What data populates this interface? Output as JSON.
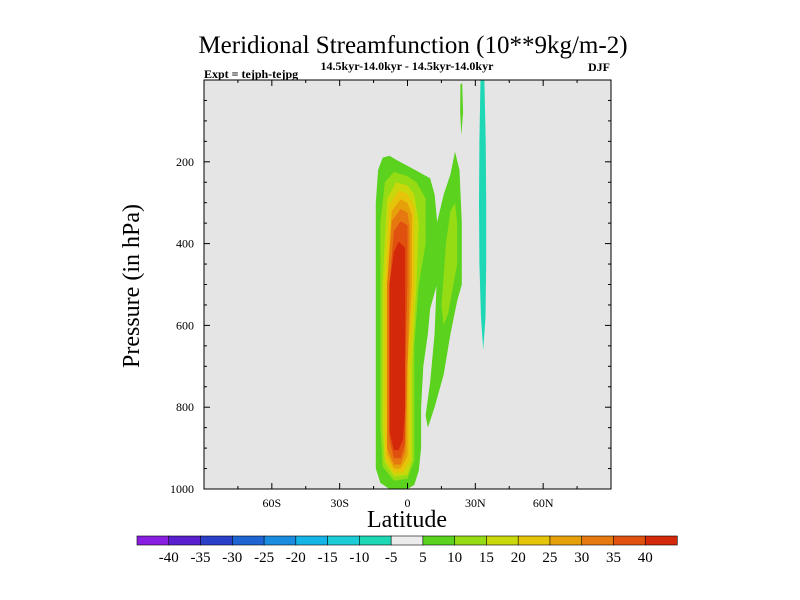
{
  "chart_data": {
    "type": "contour",
    "title": "Meridional Streamfunction (10**9kg/m-2)",
    "subtitle_left": "Expt = tejph-tejpg",
    "subtitle_center": "14.5kyr-14.0kyr - 14.5kyr-14.0kyr",
    "subtitle_right": "DJF",
    "xlabel": "Latitude",
    "ylabel": "Pressure (in hPa)",
    "xlim": [
      -90,
      90
    ],
    "ylim": [
      0,
      1000
    ],
    "x_ticks": [
      {
        "value": -60,
        "label": "60S"
      },
      {
        "value": -30,
        "label": "30S"
      },
      {
        "value": 0,
        "label": "0"
      },
      {
        "value": 30,
        "label": "30N"
      },
      {
        "value": 60,
        "label": "60N"
      }
    ],
    "y_ticks": [
      {
        "value": 200,
        "label": "200"
      },
      {
        "value": 400,
        "label": "400"
      },
      {
        "value": 600,
        "label": "600"
      },
      {
        "value": 800,
        "label": "800"
      },
      {
        "value": 1000,
        "label": "1000"
      }
    ],
    "background_color": "#e5e5e5",
    "colorbar": {
      "colors": [
        "#8a1ee0",
        "#5a20d0",
        "#2a40c8",
        "#1e64d2",
        "#1a8ce0",
        "#14b4e6",
        "#1ccdd8",
        "#1ed7b4",
        "#ececec",
        "#5ad21e",
        "#96dc14",
        "#c8d80a",
        "#e6c40a",
        "#e6a00a",
        "#e67810",
        "#e0500e",
        "#d4280a"
      ],
      "labels": [
        "-40",
        "-35",
        "-30",
        "-25",
        "-20",
        "-15",
        "-10",
        "-5",
        "5",
        "10",
        "15",
        "20",
        "25",
        "30",
        "35",
        "40"
      ]
    },
    "features": [
      {
        "name": "main-cell-green",
        "level": "5 to 10",
        "color": "#5ad21e",
        "outline": [
          [
            -8,
            1000
          ],
          [
            -12,
            985
          ],
          [
            -14,
            950
          ],
          [
            -14,
            800
          ],
          [
            -14,
            500
          ],
          [
            -14,
            300
          ],
          [
            -13,
            220
          ],
          [
            -11,
            190
          ],
          [
            -8,
            185
          ],
          [
            -5,
            195
          ],
          [
            0,
            210
          ],
          [
            5,
            225
          ],
          [
            10,
            240
          ],
          [
            12,
            280
          ],
          [
            13,
            340
          ],
          [
            14,
            400
          ],
          [
            14,
            480
          ],
          [
            10,
            560
          ],
          [
            9,
            620
          ],
          [
            7,
            700
          ],
          [
            6,
            800
          ],
          [
            6,
            900
          ],
          [
            5,
            955
          ],
          [
            3,
            990
          ],
          [
            0,
            1000
          ]
        ]
      },
      {
        "name": "main-cell-light-green",
        "level": "10 to 15",
        "color": "#96dc14",
        "outline": [
          [
            -6,
            980
          ],
          [
            -11,
            945
          ],
          [
            -12,
            850
          ],
          [
            -12,
            600
          ],
          [
            -12,
            350
          ],
          [
            -10,
            250
          ],
          [
            -6,
            225
          ],
          [
            0,
            235
          ],
          [
            4,
            250
          ],
          [
            8,
            290
          ],
          [
            8,
            400
          ],
          [
            5,
            500
          ],
          [
            3,
            650
          ],
          [
            3,
            800
          ],
          [
            3,
            930
          ],
          [
            0,
            975
          ]
        ]
      },
      {
        "name": "main-cell-yellow",
        "level": "15 to 20",
        "color": "#c8d80a",
        "outline": [
          [
            -6,
            970
          ],
          [
            -10,
            935
          ],
          [
            -11,
            850
          ],
          [
            -11,
            500
          ],
          [
            -9,
            290
          ],
          [
            -5,
            250
          ],
          [
            0,
            258
          ],
          [
            3,
            280
          ],
          [
            5,
            350
          ],
          [
            4,
            500
          ],
          [
            2,
            700
          ],
          [
            2,
            930
          ],
          [
            0,
            965
          ]
        ]
      },
      {
        "name": "main-cell-gold",
        "level": "20 to 25",
        "color": "#e6c40a",
        "outline": [
          [
            -6,
            960
          ],
          [
            -10,
            925
          ],
          [
            -10,
            500
          ],
          [
            -8,
            305
          ],
          [
            -4,
            270
          ],
          [
            0,
            278
          ],
          [
            3,
            310
          ],
          [
            3,
            500
          ],
          [
            1,
            700
          ],
          [
            1,
            930
          ],
          [
            -2,
            960
          ]
        ]
      },
      {
        "name": "main-cell-orange",
        "level": "25 to 30",
        "color": "#e6a00a",
        "outline": [
          [
            -6,
            950
          ],
          [
            -9,
            915
          ],
          [
            -9,
            500
          ],
          [
            -7,
            320
          ],
          [
            -3,
            292
          ],
          [
            0,
            300
          ],
          [
            2,
            330
          ],
          [
            2,
            500
          ],
          [
            0,
            700
          ],
          [
            0,
            920
          ],
          [
            -3,
            950
          ]
        ]
      },
      {
        "name": "main-cell-dark-orange",
        "level": "30 to 35",
        "color": "#e67810",
        "outline": [
          [
            -6,
            940
          ],
          [
            -9,
            900
          ],
          [
            -9,
            500
          ],
          [
            -7,
            345
          ],
          [
            -3,
            315
          ],
          [
            0,
            325
          ],
          [
            1,
            360
          ],
          [
            1,
            500
          ],
          [
            0,
            700
          ],
          [
            -1,
            910
          ],
          [
            -3,
            940
          ]
        ]
      },
      {
        "name": "main-cell-red-orange",
        "level": "35 to 40",
        "color": "#e0500e",
        "outline": [
          [
            -6,
            925
          ],
          [
            -8,
            880
          ],
          [
            -8,
            500
          ],
          [
            -6,
            370
          ],
          [
            -3,
            345
          ],
          [
            0,
            355
          ],
          [
            0,
            500
          ],
          [
            -1,
            700
          ],
          [
            -1,
            890
          ],
          [
            -3,
            925
          ]
        ]
      },
      {
        "name": "main-cell-core",
        "level": "above 40",
        "color": "#d4280a",
        "outline": [
          [
            -6,
            905
          ],
          [
            -8,
            860
          ],
          [
            -8,
            500
          ],
          [
            -6,
            420
          ],
          [
            -4,
            395
          ],
          [
            -1,
            410
          ],
          [
            -1,
            600
          ],
          [
            -1,
            800
          ],
          [
            -2,
            880
          ],
          [
            -4,
            905
          ]
        ]
      },
      {
        "name": "upper-tail-green",
        "level": "5 to 10",
        "color": "#5ad21e",
        "outline": [
          [
            13,
            480
          ],
          [
            13,
            350
          ],
          [
            16,
            280
          ],
          [
            19,
            230
          ],
          [
            21,
            175
          ],
          [
            23,
            220
          ],
          [
            24,
            350
          ],
          [
            24,
            500
          ],
          [
            22,
            540
          ],
          [
            19,
            620
          ],
          [
            16,
            720
          ],
          [
            12,
            800
          ],
          [
            9,
            850
          ],
          [
            8,
            820
          ],
          [
            10,
            740
          ],
          [
            12,
            620
          ]
        ]
      },
      {
        "name": "upper-tail-light-green",
        "level": "10 to 15",
        "color": "#96dc14",
        "outline": [
          [
            16,
            480
          ],
          [
            17,
            400
          ],
          [
            19,
            320
          ],
          [
            21,
            300
          ],
          [
            22,
            350
          ],
          [
            22,
            450
          ],
          [
            20,
            510
          ],
          [
            18,
            570
          ],
          [
            16,
            600
          ],
          [
            15,
            550
          ]
        ]
      },
      {
        "name": "thin-green-spike",
        "level": "5 to 10",
        "color": "#5ad21e",
        "outline": [
          [
            23.4,
            10
          ],
          [
            24.2,
            8
          ],
          [
            24.6,
            80
          ],
          [
            23.8,
            135
          ],
          [
            23.3,
            80
          ]
        ]
      },
      {
        "name": "negative-teal-band",
        "level": "-5 to -10",
        "color": "#1ed7b4",
        "outline": [
          [
            32.3,
            0
          ],
          [
            34,
            0
          ],
          [
            34.6,
            150
          ],
          [
            34.8,
            300
          ],
          [
            34.8,
            450
          ],
          [
            34.5,
            580
          ],
          [
            33.5,
            660
          ],
          [
            32.5,
            580
          ],
          [
            31.8,
            450
          ],
          [
            31.6,
            300
          ],
          [
            31.8,
            150
          ]
        ]
      }
    ]
  }
}
